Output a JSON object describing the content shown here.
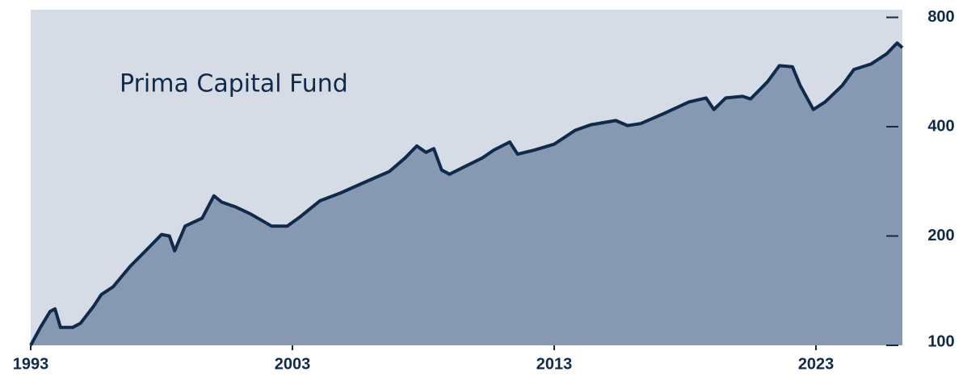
{
  "chart_data": {
    "type": "area",
    "title": "Prima Capital Fund",
    "log_scale": true,
    "background_color": "#d5dce6",
    "fill_color": "#8698b2",
    "line_color": "#0f2a4a",
    "xlim": [
      1993,
      2026.3
    ],
    "ylim": [
      100,
      840
    ],
    "xticks": [
      1993,
      2003,
      2013,
      2023
    ],
    "yticks": [
      100,
      200,
      400,
      800
    ],
    "x": [
      1993.0,
      1993.37,
      1993.74,
      1993.93,
      1994.14,
      1994.6,
      1994.9,
      1995.4,
      1995.7,
      1996.15,
      1996.8,
      1997.55,
      1998.0,
      1998.3,
      1998.5,
      1998.9,
      1999.55,
      2000.0,
      2000.3,
      2000.8,
      2001.4,
      2002.2,
      2002.8,
      2003.3,
      2004.05,
      2004.85,
      2005.75,
      2006.7,
      2007.3,
      2007.75,
      2008.1,
      2008.4,
      2008.7,
      2009.0,
      2009.6,
      2010.25,
      2010.7,
      2011.3,
      2011.6,
      2012.25,
      2013.0,
      2013.8,
      2014.4,
      2015.35,
      2015.8,
      2016.3,
      2017.2,
      2018.15,
      2018.8,
      2019.1,
      2019.55,
      2020.2,
      2020.5,
      2021.15,
      2021.6,
      2022.1,
      2022.4,
      2022.9,
      2023.35,
      2024.0,
      2024.45,
      2025.1,
      2025.7,
      2026.1,
      2026.3
    ],
    "values": [
      100,
      112,
      124,
      126,
      112,
      112,
      115,
      128,
      138,
      145,
      165,
      187,
      202,
      200,
      182,
      213,
      224,
      258,
      248,
      241,
      230,
      213,
      213,
      226,
      250,
      263,
      281,
      301,
      328,
      354,
      340,
      348,
      304,
      296,
      311,
      328,
      345,
      363,
      336,
      345,
      358,
      391,
      405,
      416,
      403,
      408,
      435,
      468,
      480,
      446,
      480,
      485,
      477,
      532,
      589,
      585,
      519,
      446,
      468,
      519,
      575,
      595,
      635,
      680,
      660
    ]
  }
}
